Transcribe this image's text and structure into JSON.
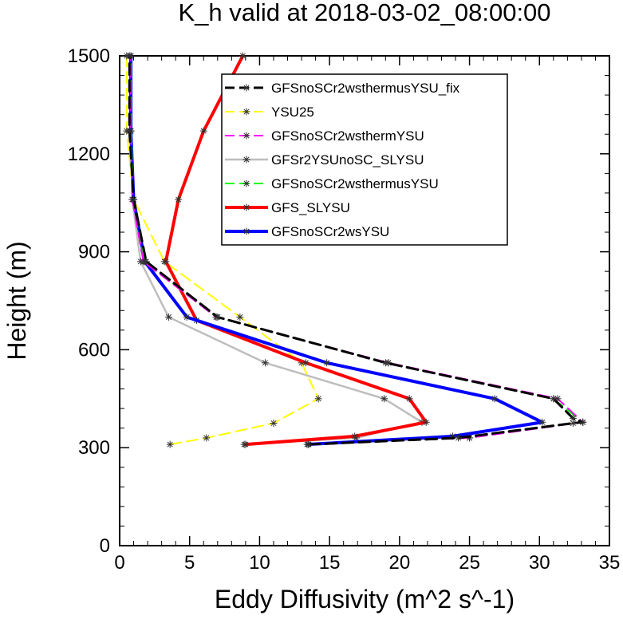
{
  "chart_data": {
    "type": "line",
    "title": "K_h valid at 2018-03-02_08:00:00",
    "xlabel": "Eddy Diffusivity (m^2 s^-1)",
    "ylabel": "Height (m)",
    "xlim": [
      0,
      35
    ],
    "ylim": [
      0,
      1500
    ],
    "xticks": [
      0,
      5,
      10,
      15,
      20,
      25,
      30,
      35
    ],
    "yticks": [
      0,
      300,
      600,
      900,
      1200,
      1500
    ],
    "xtick_labels": [
      "0",
      "5",
      "10",
      "15",
      "20",
      "25",
      "30",
      "35"
    ],
    "ytick_labels": [
      "0",
      "300",
      "600",
      "900",
      "1200",
      "1500"
    ],
    "legend_position": "top-right",
    "grid": false,
    "series": [
      {
        "name": "GFSnoSCr2wsthermusYSU_fix",
        "color": "#000000",
        "dashed": true,
        "width": 3,
        "x": [
          13.5,
          24.2,
          32.4,
          33.1,
          32.4,
          31.0,
          19.0,
          7.0,
          1.9,
          1.0,
          0.7,
          0.7
        ],
        "y": [
          310,
          330,
          375,
          378,
          390,
          450,
          560,
          700,
          870,
          1060,
          1270,
          1500
        ]
      },
      {
        "name": "YSU25",
        "color": "#ffff00",
        "dashed": true,
        "width": 2,
        "x": [
          3.6,
          6.2,
          11.0,
          14.2,
          13.0,
          8.6,
          3.2,
          1.0,
          0.5,
          0.5
        ],
        "y": [
          310,
          330,
          375,
          450,
          560,
          700,
          870,
          1060,
          1270,
          1500
        ]
      },
      {
        "name": "GFSnoSCr2wsthermYSU",
        "color": "#ff00ff",
        "dashed": true,
        "width": 2,
        "x": [
          13.5,
          25.0,
          33.1,
          31.3,
          19.2,
          6.9,
          1.7,
          0.9,
          0.8,
          0.8
        ],
        "y": [
          310,
          330,
          378,
          450,
          560,
          700,
          870,
          1060,
          1270,
          1500
        ]
      },
      {
        "name": "GFSr2YSUnoSC_SLYSU",
        "color": "#bebebe",
        "dashed": false,
        "width": 2.5,
        "x": [
          8.9,
          16.9,
          21.6,
          18.9,
          10.4,
          3.5,
          1.5,
          0.9,
          0.8,
          0.8
        ],
        "y": [
          310,
          330,
          378,
          450,
          560,
          700,
          870,
          1060,
          1270,
          1500
        ]
      },
      {
        "name": "GFSnoSCr2wsthermusYSU",
        "color": "#00ff00",
        "dashed": true,
        "width": 2,
        "x": [
          13.5,
          25.0,
          33.1,
          31.0,
          19.2,
          6.9,
          1.8,
          1.0,
          0.8,
          0.8
        ],
        "y": [
          310,
          330,
          378,
          450,
          560,
          700,
          870,
          1060,
          1270,
          1500
        ]
      },
      {
        "name": "GFS_SLYSU",
        "color": "#ff0000",
        "dashed": false,
        "width": 4,
        "x": [
          9.0,
          16.8,
          21.9,
          20.7,
          13.3,
          5.5,
          3.3,
          4.2,
          6.0,
          8.8
        ],
        "y": [
          310,
          335,
          378,
          450,
          560,
          690,
          870,
          1060,
          1270,
          1500
        ]
      },
      {
        "name": "GFSnoSCr2wsYSU",
        "color": "#0000ff",
        "dashed": false,
        "width": 4,
        "x": [
          13.4,
          23.8,
          30.2,
          26.8,
          14.8,
          4.8,
          1.8,
          1.0,
          0.8,
          0.8
        ],
        "y": [
          310,
          335,
          378,
          450,
          560,
          700,
          870,
          1060,
          1270,
          1500
        ]
      }
    ]
  }
}
